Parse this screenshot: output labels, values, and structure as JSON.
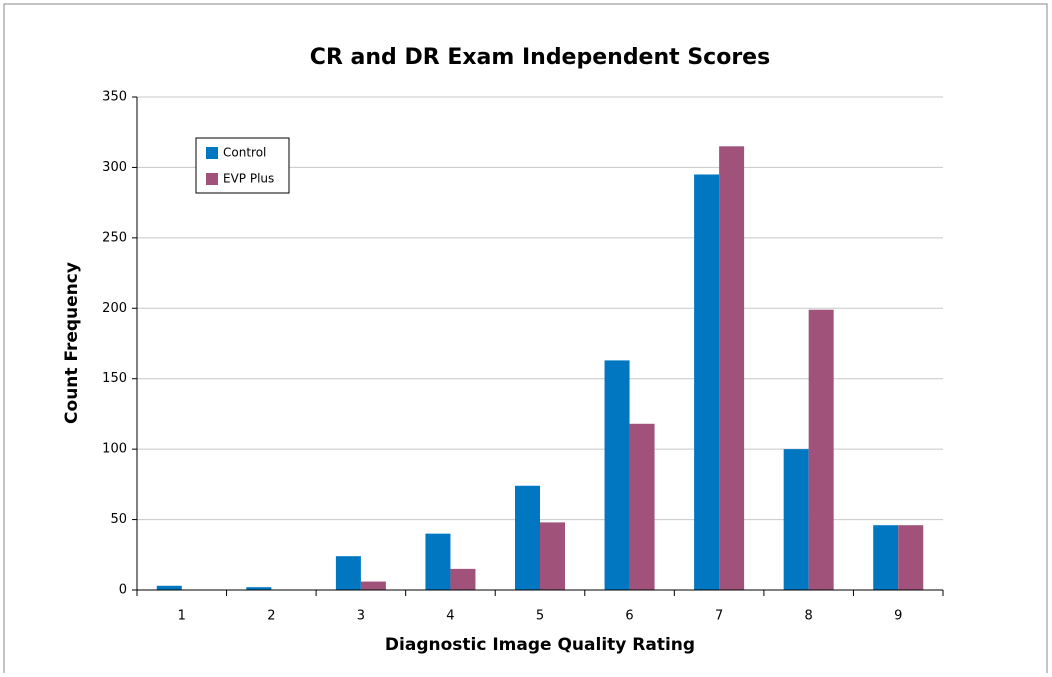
{
  "chart_data": {
    "type": "bar",
    "title": "CR and DR Exam Independent Scores",
    "x_label": "Diagnostic Image Quality Rating",
    "y_label": "Count Frequency",
    "categories": [
      "1",
      "2",
      "3",
      "4",
      "5",
      "6",
      "7",
      "8",
      "9"
    ],
    "series": [
      {
        "name": "Control",
        "color": "#0077c0",
        "values": [
          3,
          2,
          24,
          40,
          74,
          163,
          295,
          100,
          46
        ]
      },
      {
        "name": "EVP Plus",
        "color": "#a0527a",
        "values": [
          0,
          0,
          6,
          15,
          48,
          118,
          315,
          199,
          46
        ]
      }
    ],
    "ylim": [
      0,
      350
    ],
    "yticks": [
      0,
      50,
      100,
      150,
      200,
      250,
      300,
      350
    ],
    "grid": true,
    "legend": "upper left"
  }
}
